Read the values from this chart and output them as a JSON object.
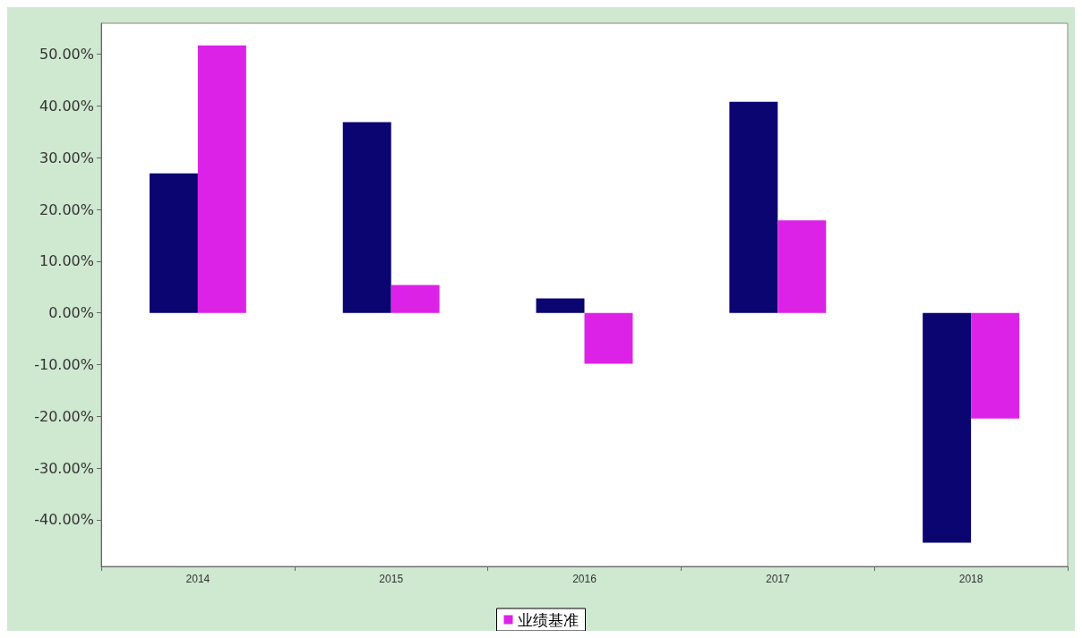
{
  "chart_data": {
    "type": "bar",
    "categories": [
      "2014",
      "2015",
      "2016",
      "2017",
      "2018"
    ],
    "series": [
      {
        "color": "#0a0570",
        "values": [
          27.0,
          36.9,
          2.8,
          40.8,
          -44.4
        ]
      },
      {
        "name": "业绩基准",
        "color": "#dd22e8",
        "values": [
          51.7,
          5.4,
          -9.8,
          17.9,
          -20.4
        ]
      }
    ],
    "ylim": [
      -49,
      56
    ],
    "yticks": [
      {
        "value": -40,
        "label": "-40.00%"
      },
      {
        "value": -30,
        "label": "-30.00%"
      },
      {
        "value": -20,
        "label": "-20.00%"
      },
      {
        "value": -10,
        "label": "-10.00%"
      },
      {
        "value": 0,
        "label": "0.00%"
      },
      {
        "value": 10,
        "label": "10.00%"
      },
      {
        "value": 20,
        "label": "20.00%"
      },
      {
        "value": 30,
        "label": "30.00%"
      },
      {
        "value": 40,
        "label": "40.00%"
      },
      {
        "value": 50,
        "label": "50.00%"
      }
    ],
    "grid": false,
    "legend": "bottom"
  }
}
